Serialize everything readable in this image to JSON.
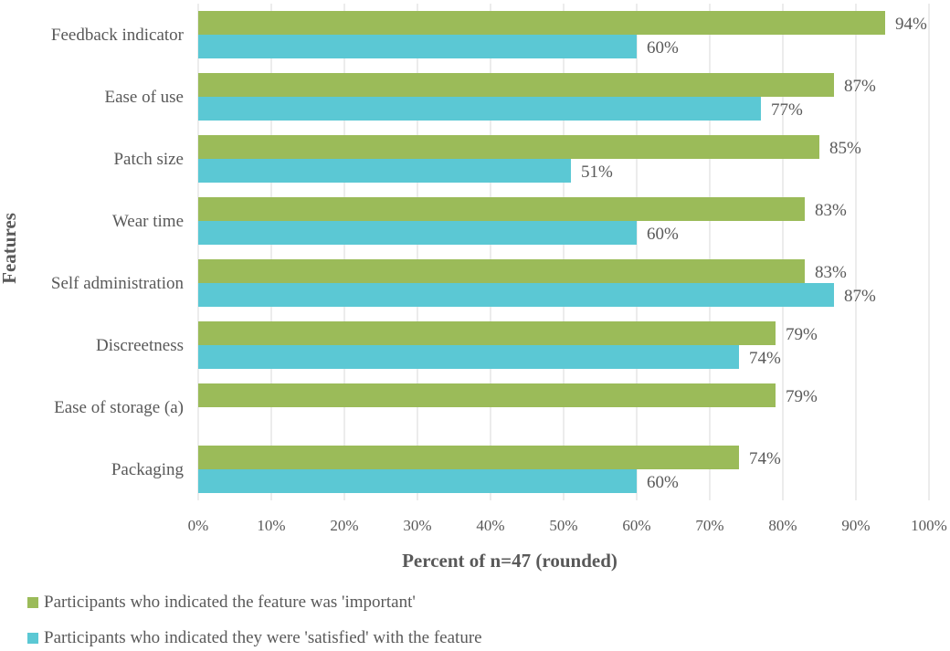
{
  "chart_data": {
    "type": "bar",
    "orientation": "horizontal",
    "categories": [
      "Feedback indicator",
      "Ease of use",
      "Patch size",
      "Wear time",
      "Self administration",
      "Discreetness",
      "Ease of storage (a)",
      "Packaging"
    ],
    "series": [
      {
        "name": "Participants who indicated the feature was 'important'",
        "color": "#9BBB59",
        "values": [
          94,
          87,
          85,
          83,
          83,
          79,
          79,
          74
        ]
      },
      {
        "name": "Participants who indicated they were 'satisfied' with the feature",
        "color": "#5BC8D4",
        "values": [
          60,
          77,
          51,
          60,
          87,
          74,
          null,
          60
        ]
      }
    ],
    "xlabel": "Percent of n=47 (rounded)",
    "ylabel": "Features",
    "xlim": [
      0,
      100
    ],
    "xticks": [
      "0%",
      "10%",
      "20%",
      "30%",
      "40%",
      "50%",
      "60%",
      "70%",
      "80%",
      "90%",
      "100%"
    ],
    "grid": true,
    "legend_position": "bottom"
  }
}
